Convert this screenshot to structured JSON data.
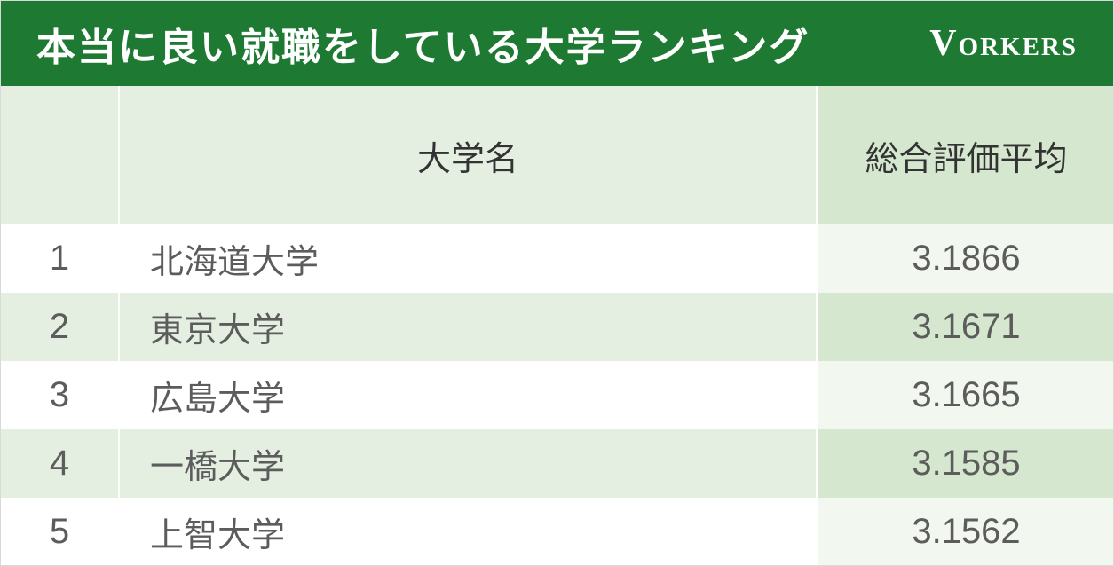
{
  "header": {
    "title": "本当に良い就職をしている大学ランキング",
    "brand": "Vorkers",
    "bg_color": "#1e7a32",
    "text_color": "#ffffff"
  },
  "table": {
    "columns": {
      "rank": "",
      "name": "大学名",
      "score": "総合評価平均"
    },
    "header_row": {
      "bg_rank": "#e4efe2",
      "bg_name": "#e4efe2",
      "bg_score": "#d5e8cf"
    },
    "row_styles": {
      "odd": {
        "bg_rank": "#ffffff",
        "bg_name": "#ffffff",
        "bg_score": "#f2f8ef"
      },
      "even": {
        "bg_rank": "#e4efe2",
        "bg_name": "#e4efe2",
        "bg_score": "#d5e8cf"
      }
    },
    "text_color_header": "#333333",
    "text_color_body": "#5c5c5c",
    "border_color": "#ffffff",
    "rows": [
      {
        "rank": "1",
        "name": "北海道大学",
        "score": "3.1866"
      },
      {
        "rank": "2",
        "name": "東京大学",
        "score": "3.1671"
      },
      {
        "rank": "3",
        "name": "広島大学",
        "score": "3.1665"
      },
      {
        "rank": "4",
        "name": "一橋大学",
        "score": "3.1585"
      },
      {
        "rank": "5",
        "name": "上智大学",
        "score": "3.1562"
      }
    ]
  }
}
